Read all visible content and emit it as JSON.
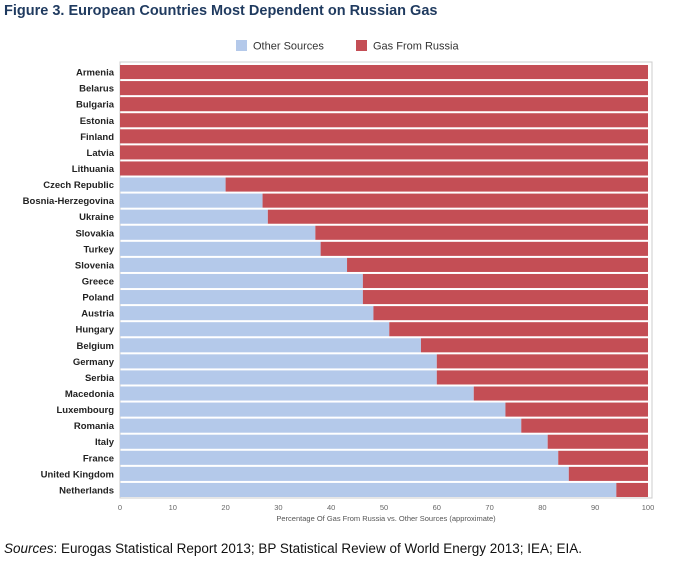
{
  "figure": {
    "title": "Figure 3. European Countries Most Dependent on Russian Gas",
    "source_label": "Sources",
    "source_text": ": Eurogas Statistical Report 2013; BP Statistical Review of World Energy 2013; IEA; EIA."
  },
  "chart_data": {
    "type": "bar",
    "orientation": "horizontal",
    "stacked": true,
    "categories": [
      "Armenia",
      "Belarus",
      "Bulgaria",
      "Estonia",
      "Finland",
      "Latvia",
      "Lithuania",
      "Czech Republic",
      "Bosnia-Herzegovina",
      "Ukraine",
      "Slovakia",
      "Turkey",
      "Slovenia",
      "Greece",
      "Poland",
      "Austria",
      "Hungary",
      "Belgium",
      "Germany",
      "Serbia",
      "Macedonia",
      "Luxembourg",
      "Romania",
      "Italy",
      "France",
      "United Kingdom",
      "Netherlands"
    ],
    "series": [
      {
        "name": "Other Sources",
        "color": "#b4c9ea",
        "values": [
          0,
          0,
          0,
          0,
          0,
          0,
          0,
          20,
          27,
          28,
          37,
          38,
          43,
          46,
          46,
          48,
          51,
          57,
          60,
          60,
          67,
          73,
          76,
          81,
          83,
          85,
          94
        ]
      },
      {
        "name": "Gas From Russia",
        "color": "#c44e55",
        "values": [
          100,
          100,
          100,
          100,
          100,
          100,
          100,
          80,
          73,
          72,
          63,
          62,
          57,
          54,
          54,
          52,
          49,
          43,
          40,
          40,
          33,
          27,
          24,
          19,
          17,
          15,
          6
        ]
      }
    ],
    "xlabel": "Percentage Of Gas From Russia vs. Other Sources (approximate)",
    "xlim": [
      0,
      100
    ],
    "xticks": [
      0,
      10,
      20,
      30,
      40,
      50,
      60,
      70,
      80,
      90,
      100
    ],
    "legend_position": "top",
    "grid": false
  }
}
